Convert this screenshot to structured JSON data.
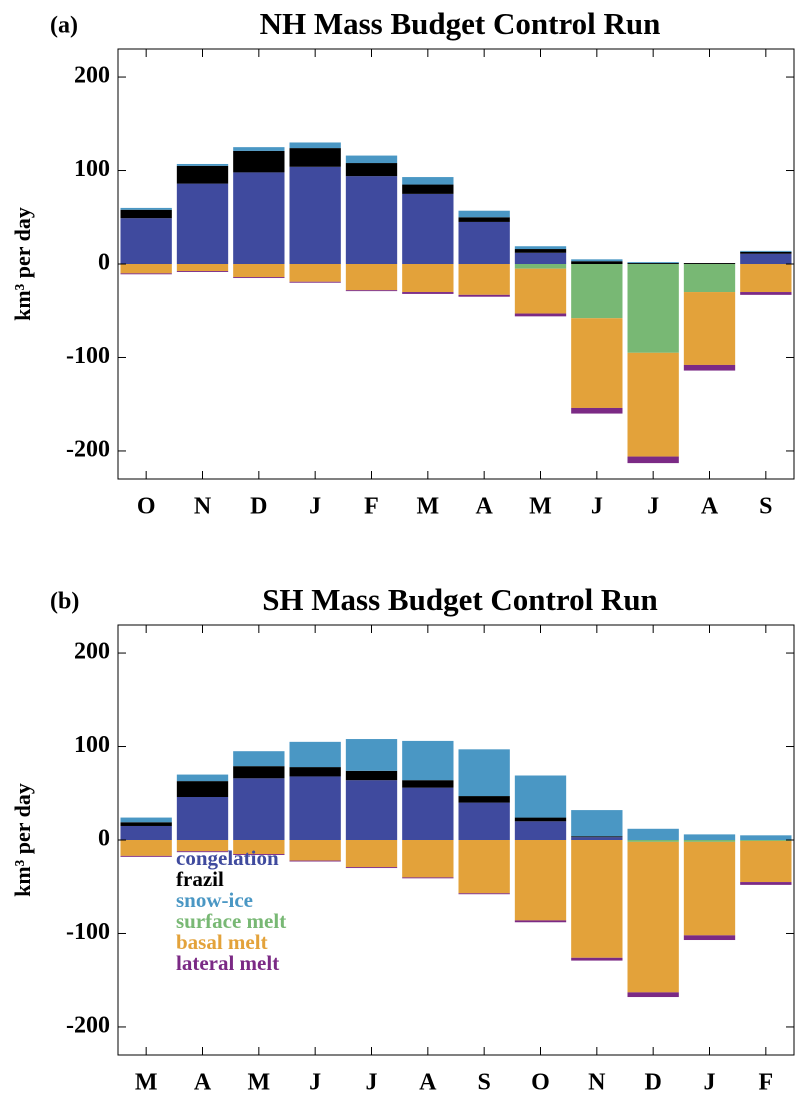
{
  "chart_data": [
    {
      "type": "bar",
      "stacked": true,
      "panel_label": "(a)",
      "title": "NH Mass Budget Control Run",
      "y_label": "km³ per day",
      "categories": [
        "O",
        "N",
        "D",
        "J",
        "F",
        "M",
        "A",
        "M",
        "J",
        "J",
        "A",
        "S"
      ],
      "ylim": [
        -230,
        230
      ],
      "yticks": [
        -200,
        -100,
        0,
        100,
        200
      ],
      "legend": false,
      "series": [
        {
          "name": "congelation",
          "color": "#3f4a9e",
          "values": [
            49,
            86,
            98,
            104,
            94,
            75,
            45,
            12,
            0,
            0,
            0,
            11
          ]
        },
        {
          "name": "frazil",
          "color": "#000000",
          "values": [
            9,
            19,
            23,
            20,
            14,
            10,
            5,
            4,
            3,
            1,
            1,
            2
          ]
        },
        {
          "name": "snow-ice",
          "color": "#4a97c4",
          "values": [
            2,
            2,
            4,
            6,
            8,
            8,
            7,
            3,
            2,
            1,
            0,
            1
          ]
        },
        {
          "name": "surface melt",
          "color": "#78b874",
          "values": [
            0,
            0,
            0,
            0,
            0,
            0,
            0,
            -5,
            -58,
            -95,
            -30,
            0
          ]
        },
        {
          "name": "basal melt",
          "color": "#e3a23a",
          "values": [
            -10,
            -7.5,
            -14,
            -19,
            -28,
            -30,
            -33,
            -48,
            -96,
            -111,
            -78,
            -30
          ]
        },
        {
          "name": "lateral melt",
          "color": "#7b2a85",
          "values": [
            -1,
            -1,
            -1,
            -1,
            -1,
            -2,
            -2,
            -3,
            -6,
            -7,
            -6,
            -3
          ]
        }
      ]
    },
    {
      "type": "bar",
      "stacked": true,
      "panel_label": "(b)",
      "title": "SH Mass Budget Control Run",
      "y_label": "km³ per day",
      "categories": [
        "M",
        "A",
        "M",
        "J",
        "J",
        "A",
        "S",
        "O",
        "N",
        "D",
        "J",
        "F"
      ],
      "ylim": [
        -230,
        230
      ],
      "yticks": [
        -200,
        -100,
        0,
        100,
        200
      ],
      "legend": true,
      "series": [
        {
          "name": "congelation",
          "color": "#3f4a9e",
          "values": [
            15,
            46,
            66,
            68,
            64,
            56,
            40,
            20,
            3,
            0,
            0,
            0
          ]
        },
        {
          "name": "frazil",
          "color": "#000000",
          "values": [
            4,
            17,
            13,
            10,
            10,
            8,
            7,
            4,
            1,
            0,
            0,
            0
          ]
        },
        {
          "name": "snow-ice",
          "color": "#4a97c4",
          "values": [
            5,
            7,
            16,
            27,
            34,
            42,
            50,
            45,
            28,
            12,
            6,
            5
          ]
        },
        {
          "name": "surface melt",
          "color": "#78b874",
          "values": [
            0,
            0,
            0,
            0,
            0,
            0,
            0,
            0,
            0,
            -2,
            -2,
            -1
          ]
        },
        {
          "name": "basal melt",
          "color": "#e3a23a",
          "values": [
            -17,
            -12,
            -15,
            -22,
            -29,
            -40,
            -57,
            -86,
            -126,
            -161,
            -100,
            -44
          ]
        },
        {
          "name": "lateral melt",
          "color": "#7b2a85",
          "values": [
            -1,
            -1,
            -1,
            -1,
            -1,
            -1,
            -1,
            -2,
            -3,
            -5,
            -5,
            -3
          ]
        }
      ]
    }
  ]
}
